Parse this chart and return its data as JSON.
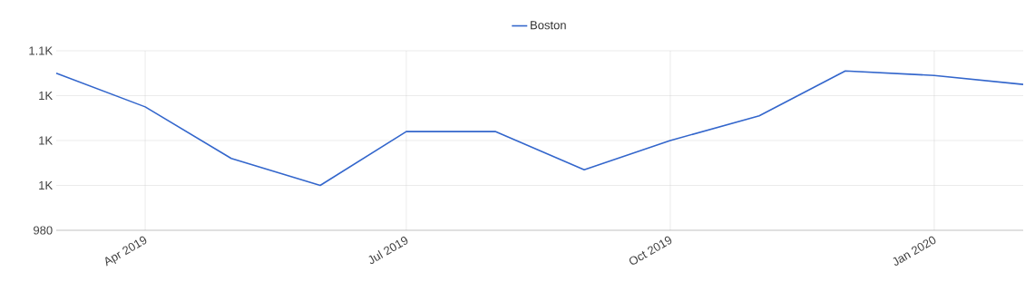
{
  "chart_data": {
    "type": "line",
    "x": [
      "2019-03",
      "2019-04",
      "2019-05",
      "2019-06",
      "2019-07",
      "2019-08",
      "2019-09",
      "2019-10",
      "2019-11",
      "2019-12",
      "2020-01",
      "2020-02"
    ],
    "series": [
      {
        "name": "Boston",
        "color": "#3366cc",
        "values": [
          1050,
          1035,
          1012,
          1000,
          1024,
          1024,
          1007,
          1020,
          1031,
          1051,
          1049,
          1045
        ]
      }
    ],
    "xlim": [
      "2019-03",
      "2020-02"
    ],
    "xticks": [
      {
        "value": "2019-04",
        "label": "Apr 2019"
      },
      {
        "value": "2019-07",
        "label": "Jul 2019"
      },
      {
        "value": "2019-10",
        "label": "Oct 2019"
      },
      {
        "value": "2020-01",
        "label": "Jan 2020"
      }
    ],
    "ylim": [
      980,
      1060
    ],
    "yticks": [
      980,
      {
        "value": 1000,
        "label": "1K"
      },
      {
        "value": 1020,
        "label": "1K"
      },
      {
        "value": 1040,
        "label": "1K"
      },
      {
        "value": 1060,
        "label": "1.1K"
      }
    ],
    "grid": true,
    "legend": "top",
    "marker": "none",
    "line_style": "solid"
  }
}
